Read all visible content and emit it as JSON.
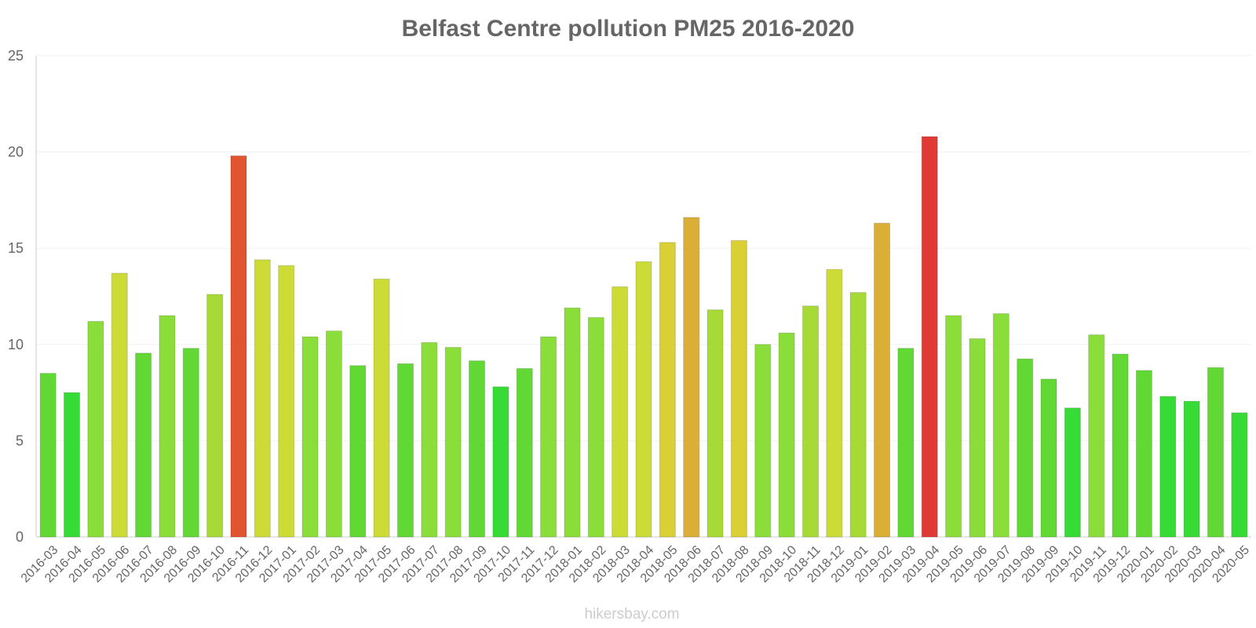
{
  "chart_data": {
    "type": "bar",
    "title": "Belfast Centre pollution PM25 2016-2020",
    "xlabel": "",
    "ylabel": "",
    "ylim": [
      0,
      25
    ],
    "yticks": [
      0,
      5,
      10,
      15,
      20,
      25
    ],
    "grid": true,
    "categories": [
      "2016-03",
      "2016-04",
      "2016-05",
      "2016-06",
      "2016-07",
      "2016-08",
      "2016-09",
      "2016-10",
      "2016-11",
      "2016-12",
      "2017-01",
      "2017-02",
      "2017-03",
      "2017-04",
      "2017-05",
      "2017-06",
      "2017-07",
      "2017-08",
      "2017-09",
      "2017-10",
      "2017-11",
      "2017-12",
      "2018-01",
      "2018-02",
      "2018-03",
      "2018-04",
      "2018-05",
      "2018-06",
      "2018-07",
      "2018-08",
      "2018-09",
      "2018-10",
      "2018-11",
      "2018-12",
      "2019-01",
      "2019-02",
      "2019-03",
      "2019-04",
      "2019-05",
      "2019-06",
      "2019-07",
      "2019-08",
      "2019-09",
      "2019-10",
      "2019-11",
      "2019-12",
      "2020-01",
      "2020-02",
      "2020-03",
      "2020-04",
      "2020-05"
    ],
    "values": [
      8.5,
      7.5,
      11.2,
      13.7,
      9.55,
      11.5,
      9.8,
      12.6,
      19.8,
      14.4,
      14.1,
      10.4,
      10.7,
      8.9,
      13.4,
      9.0,
      10.1,
      9.85,
      9.15,
      7.8,
      8.75,
      10.4,
      11.9,
      11.4,
      13.0,
      14.3,
      15.3,
      16.6,
      11.8,
      15.4,
      10.0,
      10.6,
      12.0,
      13.9,
      12.7,
      16.3,
      9.8,
      20.8,
      11.5,
      10.3,
      11.6,
      9.25,
      8.2,
      6.7,
      10.5,
      9.5,
      8.65,
      7.3,
      7.05,
      8.8,
      6.45
    ],
    "colors": [
      "#62d835",
      "#36dc35",
      "#8bde39",
      "#cddb37",
      "#62d835",
      "#8bde39",
      "#62d835",
      "#a7da36",
      "#e0552f",
      "#cddb37",
      "#cddb37",
      "#8bde39",
      "#8bde39",
      "#62d835",
      "#cddb37",
      "#62d835",
      "#8bde39",
      "#8bde39",
      "#62d835",
      "#36dc35",
      "#62d835",
      "#8bde39",
      "#8bde39",
      "#8bde39",
      "#cddb37",
      "#cddb37",
      "#dbcf36",
      "#dbae36",
      "#a7da36",
      "#dbcf36",
      "#8bde39",
      "#8bde39",
      "#a7da36",
      "#cddb37",
      "#a7da36",
      "#dbae36",
      "#62d835",
      "#e03a35",
      "#8bde39",
      "#8bde39",
      "#8bde39",
      "#62d835",
      "#62d835",
      "#36dc35",
      "#8bde39",
      "#62d835",
      "#62d835",
      "#36dc35",
      "#36dc35",
      "#62d835",
      "#36dc35"
    ]
  },
  "credit": "hikersbay.com"
}
